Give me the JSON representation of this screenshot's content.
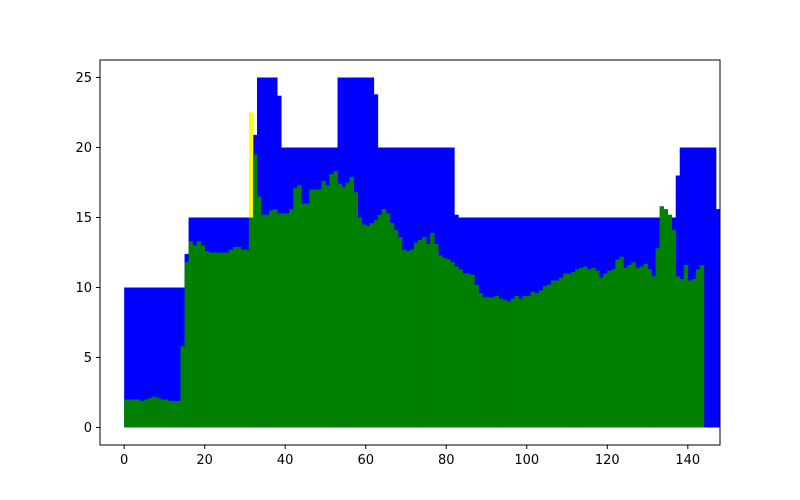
{
  "chart_data": {
    "type": "bar",
    "title": "",
    "xlabel": "",
    "ylabel": "",
    "xlim": [
      -6,
      148
    ],
    "ylim": [
      -1.25,
      26.25
    ],
    "x_ticks": [
      0,
      20,
      40,
      60,
      80,
      100,
      120,
      140
    ],
    "y_ticks": [
      0,
      5,
      10,
      15,
      20,
      25
    ],
    "grid": false,
    "legend": "none",
    "series": [
      {
        "color": "#0000ff",
        "values": [
          10,
          10,
          10,
          10,
          10,
          10,
          10,
          10,
          10,
          10,
          10,
          10,
          10,
          10,
          10,
          12.4,
          15,
          15,
          15,
          15,
          15,
          15,
          15,
          15,
          15,
          15,
          15,
          15,
          15,
          15,
          15,
          15,
          20.9,
          25,
          25,
          25,
          25,
          25,
          23.7,
          20,
          20,
          20,
          20,
          20,
          20,
          20,
          20,
          20,
          20,
          20,
          20,
          20,
          20,
          25,
          25,
          25,
          25,
          25,
          25,
          25,
          25,
          25,
          23.8,
          20,
          20,
          20,
          20,
          20,
          20,
          20,
          20,
          20,
          20,
          20,
          20,
          20,
          20,
          20,
          20,
          20,
          20,
          20,
          15.2,
          15,
          15,
          15,
          15,
          15,
          15,
          15,
          15,
          15,
          15,
          15,
          15,
          15,
          15,
          15,
          15,
          15,
          15,
          15,
          15,
          15,
          15,
          15,
          15,
          15,
          15,
          15,
          15,
          15,
          15,
          15,
          15,
          15,
          15,
          15,
          15,
          15,
          15,
          15,
          15,
          15,
          15,
          15,
          15,
          15,
          15,
          15,
          15,
          15,
          15,
          15,
          15,
          15,
          15,
          18,
          20,
          20,
          20,
          20,
          20,
          20,
          20,
          20,
          20,
          15.6
        ]
      },
      {
        "color": "#ffff00",
        "values": [
          0,
          0,
          0,
          0,
          0,
          0,
          0,
          0,
          0,
          0,
          0,
          0,
          0,
          0,
          0,
          0,
          0,
          0,
          0,
          0,
          0,
          0,
          0,
          0,
          0,
          0,
          0,
          0,
          0,
          0,
          0,
          22.5,
          0,
          0,
          0,
          0,
          0,
          0,
          0,
          0,
          0,
          0,
          0,
          0,
          0,
          0,
          0,
          0,
          0,
          0,
          0,
          0,
          0,
          0,
          0,
          0,
          0,
          0,
          0,
          0,
          0,
          0,
          0,
          0,
          0,
          0,
          0,
          0,
          0,
          0,
          0,
          0,
          0,
          0,
          0,
          0,
          0,
          0,
          0,
          0,
          0,
          0,
          0,
          0,
          0,
          0,
          0,
          0,
          0,
          0,
          0,
          0,
          0,
          0,
          0,
          0,
          0,
          0,
          0,
          0,
          0,
          0,
          0,
          0,
          0,
          0,
          0,
          0,
          0,
          0,
          0,
          0,
          0,
          0,
          0,
          0,
          0,
          0,
          0,
          0,
          0,
          0,
          0,
          0,
          0,
          0,
          0,
          0,
          0,
          0,
          0,
          0,
          0,
          0,
          0,
          0,
          0,
          0,
          0,
          0,
          0,
          0,
          0
        ]
      },
      {
        "color": "#008000",
        "values": [
          2,
          2,
          2,
          2,
          1.9,
          2,
          2.1,
          2.2,
          2.1,
          2,
          2,
          1.9,
          1.9,
          1.9,
          5.8,
          11.8,
          13.3,
          13,
          13.3,
          13,
          12.6,
          12.5,
          12.5,
          12.5,
          12.5,
          12.5,
          12.7,
          12.9,
          12.9,
          12.7,
          12.7,
          15,
          19.5,
          16.5,
          15.2,
          15.2,
          15.5,
          15.6,
          15.3,
          15.3,
          15.3,
          15.6,
          17.1,
          17.3,
          16,
          16,
          17,
          17,
          17,
          17.6,
          17.3,
          18.1,
          18.3,
          17.4,
          17.2,
          17.5,
          17.9,
          16.8,
          15,
          14.5,
          14.4,
          14.6,
          14.8,
          15.2,
          15.6,
          15.3,
          14.6,
          14.1,
          13.6,
          12.7,
          12.6,
          12.7,
          13.2,
          13.4,
          13.6,
          13.1,
          13.9,
          13.1,
          12.3,
          12.1,
          12,
          11.8,
          11.5,
          11.3,
          11,
          11,
          10.9,
          10.2,
          9.6,
          9.3,
          9.3,
          9.3,
          9.4,
          9.2,
          9.1,
          9,
          9.2,
          9.4,
          9.2,
          9.4,
          9.4,
          9.7,
          9.6,
          9.8,
          10.1,
          10.2,
          10.5,
          10.5,
          10.7,
          11,
          11,
          11.1,
          11.3,
          11.4,
          11.5,
          11.3,
          11.4,
          11.2,
          10.7,
          11,
          11.2,
          11.3,
          12,
          12.2,
          11.4,
          11.6,
          11.8,
          11.4,
          11.5,
          11.7,
          11.3,
          10.8,
          12.8,
          15.8,
          15.6,
          15.2,
          14.1,
          10.8,
          10.6,
          11.6,
          10.5,
          10.6,
          11.3,
          11.6
        ]
      }
    ]
  }
}
